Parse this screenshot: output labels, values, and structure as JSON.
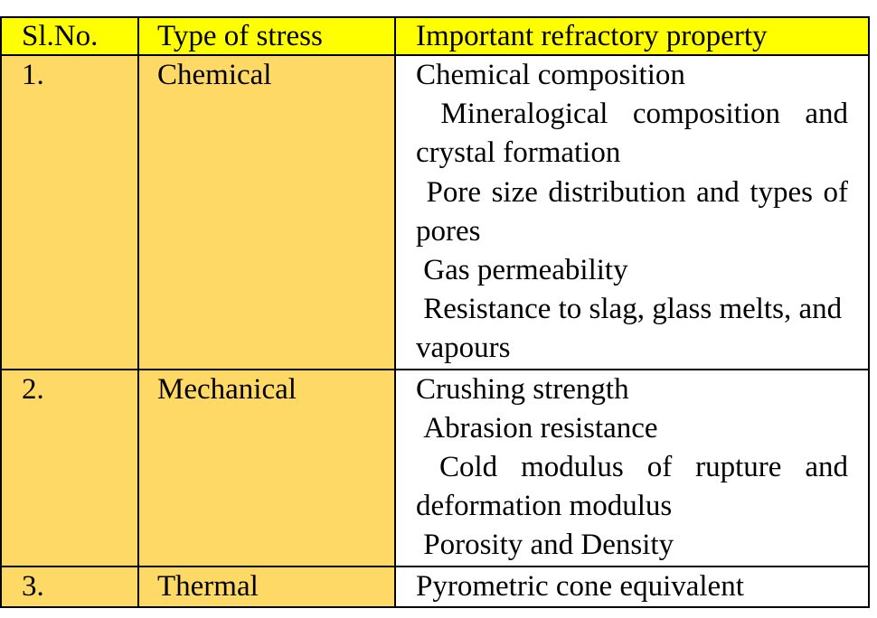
{
  "headers": [
    "Sl.No.",
    "Type of stress",
    "Important refractory property"
  ],
  "rows": [
    {
      "sl": "1.",
      "stress": "Chemical",
      "properties": [
        "Chemical composition",
        " Mineralogical composition and crystal formation",
        " Pore size distribution and types of pores",
        " Gas permeability",
        " Resistance to slag, glass melts, and vapours"
      ]
    },
    {
      "sl": "2.",
      "stress": "Mechanical",
      "properties": [
        "Crushing strength",
        " Abrasion resistance",
        " Cold modulus of rupture and deformation modulus",
        " Porosity and Density"
      ]
    },
    {
      "sl": "3.",
      "stress": "Thermal",
      "properties": [
        "Pyrometric cone equivalent"
      ]
    }
  ],
  "colors": {
    "header_bg": "#ffff00",
    "first_cols_bg": "#ffd966",
    "border": "#000000"
  }
}
